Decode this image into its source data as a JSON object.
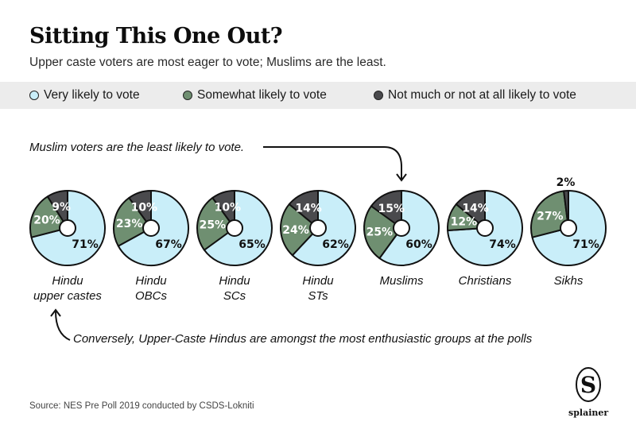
{
  "header": {
    "title": "Sitting This One Out?",
    "subtitle": "Upper caste voters are most eager to vote; Muslims are the least."
  },
  "legend": [
    {
      "label": "Very likely to vote",
      "color": "#c9eef9"
    },
    {
      "label": "Somewhat likely to vote",
      "color": "#6f8f71"
    },
    {
      "label": "Not much or not at all likely to vote",
      "color": "#4a4a4d"
    }
  ],
  "annotations": {
    "top": "Muslim voters are the least likely to vote.",
    "bottom": "Conversely, Upper-Caste Hindus are amongst the most enthusiastic groups at the polls"
  },
  "source": "Source: NES Pre Poll 2019 conducted by CSDS-Lokniti",
  "logo": {
    "letter": "S",
    "word": "splainer"
  },
  "chart_data": {
    "type": "pie",
    "title": "Sitting This One Out?",
    "subtitle": "Upper caste voters are most eager to vote; Muslims are the least.",
    "series_names": [
      "Very likely to vote",
      "Somewhat likely to vote",
      "Not much or not at all likely to vote"
    ],
    "colors": [
      "#c9eef9",
      "#6f8f71",
      "#4a4a4d"
    ],
    "legend_position": "top",
    "categories": [
      {
        "label": [
          "Hindu",
          "upper castes"
        ],
        "values": [
          71,
          20,
          9
        ]
      },
      {
        "label": [
          "Hindu",
          "OBCs"
        ],
        "values": [
          67,
          23,
          10
        ]
      },
      {
        "label": [
          "Hindu",
          "SCs"
        ],
        "values": [
          65,
          25,
          10
        ]
      },
      {
        "label": [
          "Hindu",
          "STs"
        ],
        "values": [
          62,
          24,
          14
        ]
      },
      {
        "label": [
          "Muslims"
        ],
        "values": [
          60,
          25,
          15
        ]
      },
      {
        "label": [
          "Christians"
        ],
        "values": [
          74,
          12,
          14
        ]
      },
      {
        "label": [
          "Sikhs"
        ],
        "values": [
          71,
          27,
          2
        ]
      }
    ]
  }
}
